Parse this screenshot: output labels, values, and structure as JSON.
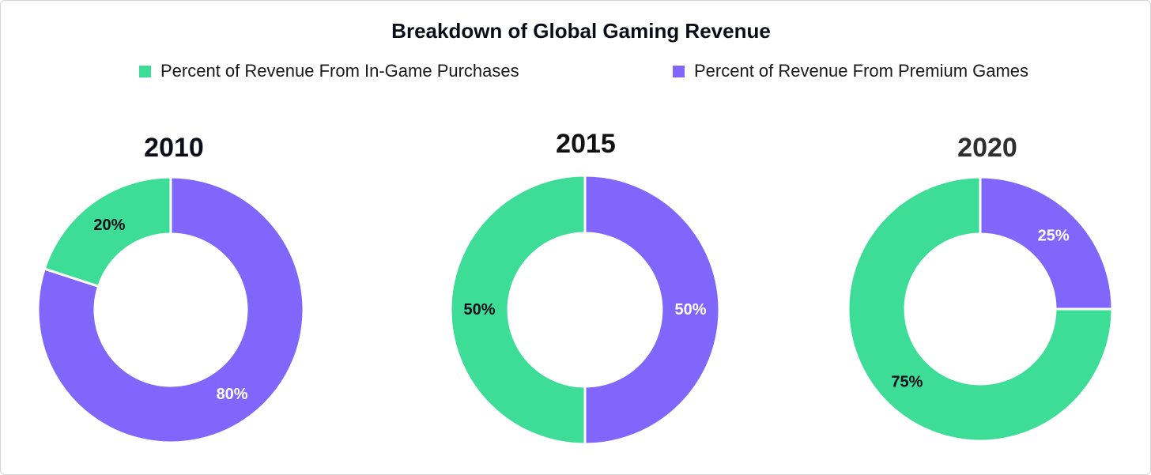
{
  "chart_data": {
    "type": "pie",
    "title": "Breakdown of Global Gaming Revenue",
    "legend": [
      {
        "name": "Percent of Revenue From In-Game Purchases",
        "color": "#3ddc97"
      },
      {
        "name": "Percent of Revenue From Premium Games",
        "color": "#8066fa"
      }
    ],
    "legend_placement": "top",
    "charts": [
      {
        "label": "2010",
        "slices": [
          {
            "series": "Percent of Revenue From Premium Games",
            "value": 80,
            "label": "80%"
          },
          {
            "series": "Percent of Revenue From In-Game Purchases",
            "value": 20,
            "label": "20%"
          }
        ]
      },
      {
        "label": "2015",
        "slices": [
          {
            "series": "Percent of Revenue From Premium Games",
            "value": 50,
            "label": "50%"
          },
          {
            "series": "Percent of Revenue From In-Game Purchases",
            "value": 50,
            "label": "50%"
          }
        ]
      },
      {
        "label": "2020",
        "slices": [
          {
            "series": "Percent of Revenue From Premium Games",
            "value": 25,
            "label": "25%"
          },
          {
            "series": "Percent of Revenue From In-Game Purchases",
            "value": 75,
            "label": "75%"
          }
        ]
      }
    ]
  }
}
